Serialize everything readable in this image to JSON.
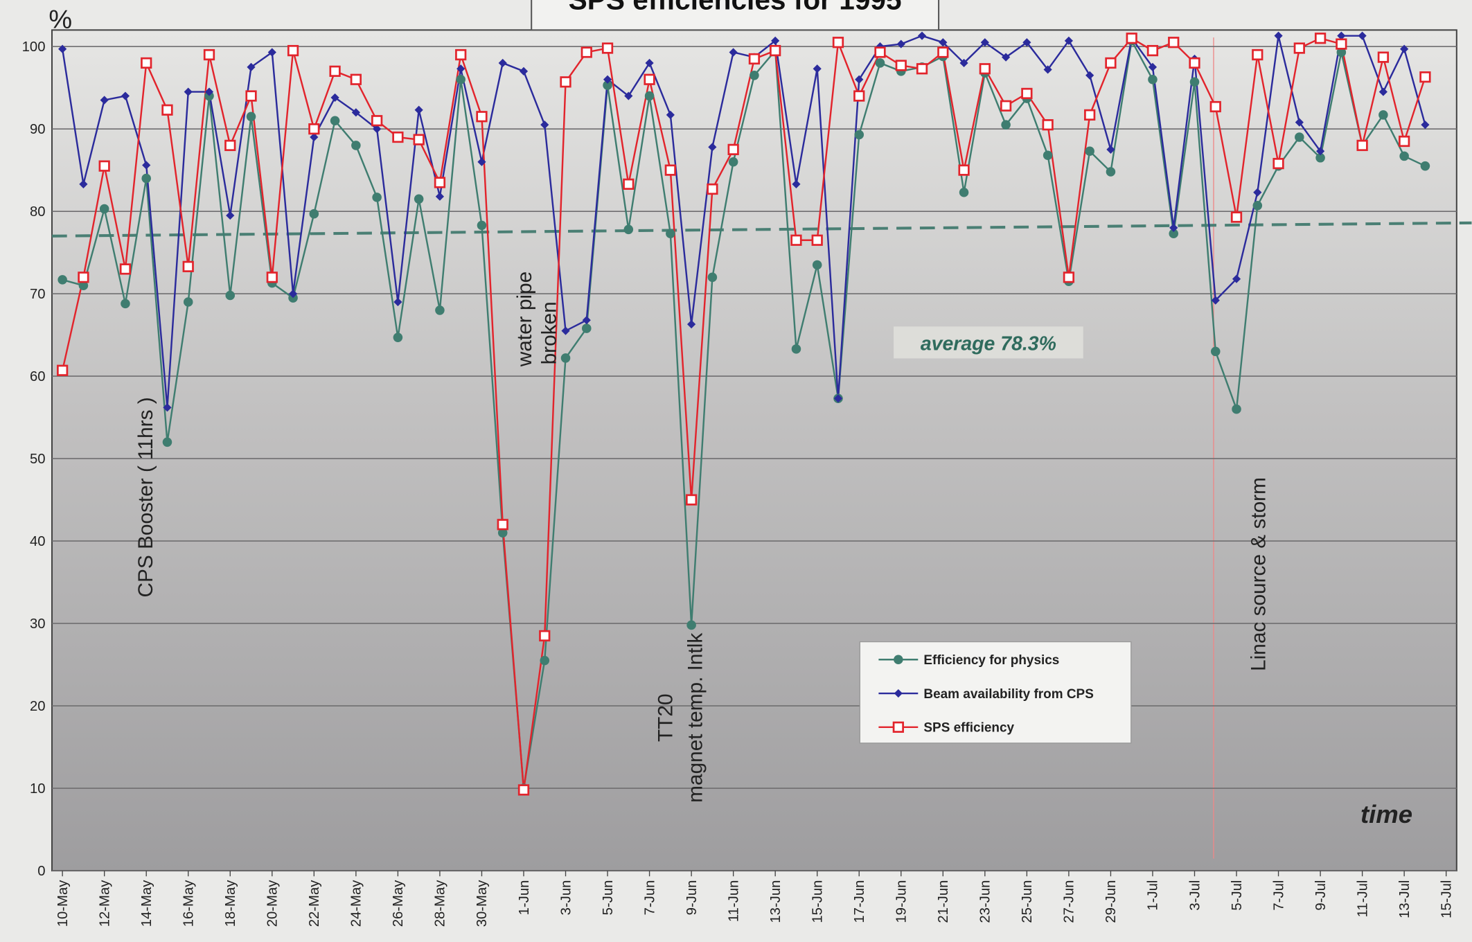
{
  "chart_data": {
    "type": "line",
    "title": "SPS efficiencies for 1995",
    "y_label": "%",
    "x_label": "time",
    "categories": [
      "10-May",
      null,
      "12-May",
      null,
      "14-May",
      null,
      "16-May",
      null,
      "18-May",
      null,
      "20-May",
      null,
      "22-May",
      null,
      "24-May",
      null,
      "26-May",
      null,
      "28-May",
      null,
      "30-May",
      null,
      "1-Jun",
      null,
      "3-Jun",
      null,
      "5-Jun",
      null,
      "7-Jun",
      null,
      "9-Jun",
      null,
      "11-Jun",
      null,
      "13-Jun",
      null,
      "15-Jun",
      null,
      "17-Jun",
      null,
      "19-Jun",
      null,
      "21-Jun",
      null,
      "23-Jun",
      null,
      "25-Jun",
      null,
      "27-Jun",
      null,
      "29-Jun",
      null,
      "1-Jul",
      null,
      "3-Jul",
      null,
      "5-Jul",
      null,
      "7-Jul",
      null,
      "9-Jul",
      null,
      "11-Jul",
      null,
      "13-Jul",
      null,
      "15-Jul"
    ],
    "series": [
      {
        "name": "Efficiency for physics",
        "color": "#3f7d70",
        "marker": "circle",
        "values": [
          71.7,
          71,
          80.3,
          68.8,
          84,
          52,
          69,
          94,
          69.8,
          91.5,
          71.3,
          69.5,
          79.7,
          91,
          88,
          81.7,
          64.7,
          81.5,
          68,
          96,
          78.3,
          41,
          10,
          25.5,
          62.2,
          65.8,
          95.3,
          77.8,
          94,
          77.3,
          29.8,
          72,
          86,
          96.5,
          99.5,
          63.3,
          73.5,
          57.3,
          89.3,
          98,
          97,
          97.5,
          98.8,
          82.3,
          96.8,
          90.5,
          93.7,
          86.8,
          71.5,
          87.3,
          84.8,
          100.7,
          96,
          77.3,
          95.7,
          63,
          56,
          80.7,
          85.5,
          89,
          86.5,
          99.3,
          88,
          91.7,
          86.7,
          85.5,
          null
        ]
      },
      {
        "name": "Beam availability from CPS",
        "color": "#2b2b9c",
        "marker": "diamond",
        "values": [
          99.7,
          83.3,
          93.5,
          94,
          85.6,
          56.2,
          94.5,
          94.5,
          79.5,
          97.5,
          99.3,
          70,
          89,
          93.8,
          92,
          90,
          69,
          92.3,
          81.8,
          97.3,
          86,
          98,
          97,
          90.5,
          65.5,
          66.8,
          96,
          94,
          98,
          91.7,
          66.3,
          87.8,
          99.3,
          98.7,
          100.7,
          83.3,
          97.3,
          57.3,
          96,
          100,
          100.3,
          101.3,
          100.5,
          98,
          100.5,
          98.7,
          100.5,
          97.2,
          100.7,
          96.5,
          87.5,
          101,
          97.5,
          78,
          98.5,
          69.2,
          71.8,
          82.3,
          101.3,
          90.8,
          87.3,
          101.3,
          101.3,
          94.5,
          99.7,
          90.5,
          null
        ]
      },
      {
        "name": "SPS efficiency",
        "color": "#e2242c",
        "marker": "square",
        "values": [
          60.7,
          72,
          85.5,
          73,
          98,
          92.3,
          73.3,
          99,
          88,
          94,
          72,
          99.5,
          90,
          97,
          96,
          91,
          89,
          88.7,
          83.5,
          99,
          91.5,
          42,
          9.8,
          28.5,
          95.7,
          99.3,
          99.8,
          83.3,
          96,
          85,
          45,
          82.7,
          87.5,
          98.5,
          99.5,
          76.5,
          76.5,
          100.5,
          94,
          99.3,
          97.7,
          97.3,
          99.3,
          85,
          97.3,
          92.8,
          94.3,
          90.5,
          72,
          91.7,
          98,
          101,
          99.5,
          100.5,
          98,
          92.7,
          79.3,
          99,
          85.8,
          99.8,
          101,
          100.3,
          88,
          98.7,
          88.5,
          96.3,
          null
        ]
      }
    ],
    "average_line": {
      "color": "#4a7f74",
      "values": [
        77.0,
        78.6
      ]
    },
    "annotations": [
      "CPS Booster ( 11hrs )",
      "water pipe",
      "broken",
      "TT20",
      "magnet temp. Intlk",
      "Linac source & storm",
      "average 78.3%"
    ],
    "ylim": [
      0,
      102
    ],
    "yticks": [
      0,
      10,
      20,
      30,
      40,
      50,
      60,
      70,
      80,
      90,
      100
    ],
    "grid": true
  }
}
